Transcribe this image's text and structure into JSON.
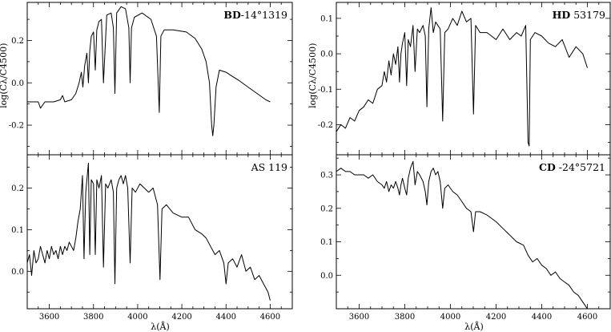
{
  "chart_data": [
    {
      "type": "line",
      "id": "bd",
      "title_bold": "BD",
      "title_rest": "-14°1319",
      "xlim": [
        3500,
        4700
      ],
      "ylim": [
        -0.34,
        0.38
      ],
      "y_ticks": [
        -0.2,
        0.0,
        0.2
      ],
      "y_tick_labels": [
        "-0.2",
        "0.0",
        "0.2"
      ],
      "x_ticks": [
        3600,
        3800,
        4000,
        4200,
        4400,
        4600
      ],
      "x_tick_labels": [
        "3600",
        "3800",
        "4000",
        "4200",
        "4400",
        "4600"
      ],
      "x_minor_ticks": [
        3500,
        3550,
        3600,
        3650,
        3700,
        3750,
        3800,
        3850,
        3900,
        3950,
        4000,
        4050,
        4100,
        4150,
        4200,
        4250,
        4300,
        4350,
        4400,
        4450,
        4500,
        4550,
        4600,
        4650,
        4700
      ],
      "ylabel": "log(Cλ/C4500)",
      "series": [
        {
          "x": [
            3500,
            3530,
            3550,
            3560,
            3580,
            3620,
            3650,
            3660,
            3670,
            3700,
            3720,
            3735,
            3745,
            3752,
            3760,
            3770,
            3777,
            3783,
            3790,
            3800,
            3808,
            3815,
            3825,
            3836,
            3845,
            3860,
            3880,
            3890,
            3897,
            3905,
            3925,
            3945,
            3960,
            3966,
            3972,
            3985,
            4020,
            4060,
            4085,
            4098,
            4105,
            4120,
            4160,
            4220,
            4260,
            4290,
            4310,
            4325,
            4335,
            4340,
            4345,
            4355,
            4370,
            4400,
            4430,
            4460,
            4500,
            4540,
            4580,
            4600
          ],
          "y": [
            -0.09,
            -0.09,
            -0.09,
            -0.12,
            -0.09,
            -0.09,
            -0.08,
            -0.06,
            -0.09,
            -0.08,
            -0.05,
            0.0,
            0.05,
            -0.02,
            0.08,
            0.14,
            0.0,
            0.15,
            0.22,
            0.24,
            0.06,
            0.25,
            0.29,
            0.3,
            0.0,
            0.32,
            0.33,
            0.26,
            -0.05,
            0.33,
            0.36,
            0.35,
            0.26,
            0.0,
            0.26,
            0.31,
            0.33,
            0.3,
            0.22,
            -0.14,
            0.22,
            0.25,
            0.25,
            0.24,
            0.21,
            0.16,
            0.1,
            0.0,
            -0.2,
            -0.25,
            -0.2,
            -0.02,
            0.06,
            0.05,
            0.03,
            0.01,
            -0.02,
            -0.05,
            -0.08,
            -0.09
          ]
        }
      ]
    },
    {
      "type": "line",
      "id": "hd",
      "title_bold": "HD",
      "title_rest": " 53179",
      "xlim": [
        3500,
        4700
      ],
      "ylim": [
        -0.285,
        0.145
      ],
      "y_ticks": [
        -0.2,
        -0.1,
        0.0,
        0.1
      ],
      "y_tick_labels": [
        "-0.2",
        "-0.1",
        "0.0",
        "0.1"
      ],
      "x_ticks": [
        3600,
        3800,
        4000,
        4200,
        4400,
        4600
      ],
      "x_tick_labels": [
        "3600",
        "3800",
        "4000",
        "4200",
        "4400",
        "4600"
      ],
      "x_minor_ticks": [
        3500,
        3550,
        3600,
        3650,
        3700,
        3750,
        3800,
        3850,
        3900,
        3950,
        4000,
        4050,
        4100,
        4150,
        4200,
        4250,
        4300,
        4350,
        4400,
        4450,
        4500,
        4550,
        4600,
        4650,
        4700
      ],
      "ylabel": "log(Cλ/C4500)",
      "series": [
        {
          "x": [
            3500,
            3520,
            3540,
            3560,
            3580,
            3600,
            3620,
            3640,
            3660,
            3680,
            3700,
            3710,
            3720,
            3730,
            3740,
            3750,
            3760,
            3770,
            3777,
            3783,
            3790,
            3800,
            3808,
            3815,
            3825,
            3836,
            3845,
            3855,
            3865,
            3880,
            3890,
            3897,
            3905,
            3915,
            3925,
            3935,
            3945,
            3955,
            3966,
            3975,
            3990,
            4010,
            4030,
            4050,
            4070,
            4090,
            4101,
            4110,
            4130,
            4160,
            4200,
            4230,
            4260,
            4290,
            4310,
            4330,
            4340,
            4345,
            4350,
            4370,
            4400,
            4430,
            4460,
            4490,
            4520,
            4550,
            4580,
            4600
          ],
          "y": [
            -0.22,
            -0.2,
            -0.21,
            -0.18,
            -0.19,
            -0.16,
            -0.15,
            -0.13,
            -0.14,
            -0.1,
            -0.09,
            -0.05,
            -0.08,
            -0.02,
            -0.06,
            0.0,
            -0.03,
            0.02,
            -0.08,
            0.0,
            0.03,
            0.06,
            -0.09,
            0.04,
            0.02,
            0.08,
            -0.05,
            0.07,
            0.06,
            0.08,
            0.05,
            -0.15,
            0.07,
            0.13,
            0.06,
            0.09,
            0.08,
            0.07,
            -0.19,
            0.06,
            0.07,
            0.1,
            0.08,
            0.12,
            0.09,
            0.1,
            -0.17,
            0.08,
            0.06,
            0.06,
            0.04,
            0.07,
            0.04,
            0.06,
            0.05,
            0.08,
            -0.25,
            -0.26,
            0.04,
            0.06,
            0.05,
            0.03,
            0.02,
            0.04,
            -0.01,
            0.02,
            0.0,
            -0.04
          ]
        }
      ]
    },
    {
      "type": "line",
      "id": "as",
      "title_bold": "",
      "title_rest": "AS 119",
      "xlim": [
        3500,
        4700
      ],
      "ylim": [
        -0.09,
        0.28
      ],
      "y_ticks": [
        0.0,
        0.1,
        0.2
      ],
      "y_tick_labels": [
        "0.0",
        "0.1",
        "0.2"
      ],
      "x_ticks": [
        3600,
        3800,
        4000,
        4200,
        4400,
        4600
      ],
      "x_tick_labels": [
        "3600",
        "3800",
        "4000",
        "4200",
        "4400",
        "4600"
      ],
      "x_minor_ticks": [
        3500,
        3550,
        3600,
        3650,
        3700,
        3750,
        3800,
        3850,
        3900,
        3950,
        4000,
        4050,
        4100,
        4150,
        4200,
        4250,
        4300,
        4350,
        4400,
        4450,
        4500,
        4550,
        4600,
        4650,
        4700
      ],
      "series": [
        {
          "x": [
            3500,
            3510,
            3520,
            3530,
            3540,
            3550,
            3560,
            3570,
            3580,
            3590,
            3600,
            3610,
            3620,
            3630,
            3640,
            3650,
            3660,
            3670,
            3680,
            3690,
            3700,
            3710,
            3720,
            3730,
            3740,
            3745,
            3750,
            3757,
            3765,
            3777,
            3783,
            3790,
            3800,
            3808,
            3815,
            3825,
            3836,
            3845,
            3855,
            3865,
            3880,
            3890,
            3897,
            3905,
            3915,
            3925,
            3935,
            3945,
            3955,
            3966,
            3975,
            3990,
            4010,
            4030,
            4050,
            4070,
            4090,
            4101,
            4110,
            4130,
            4160,
            4200,
            4230,
            4260,
            4290,
            4310,
            4330,
            4350,
            4370,
            4390,
            4400,
            4410,
            4430,
            4450,
            4470,
            4490,
            4510,
            4530,
            4550,
            4570,
            4590,
            4600
          ],
          "y": [
            0.02,
            0.04,
            -0.01,
            0.05,
            0.02,
            0.03,
            0.06,
            0.04,
            0.02,
            0.05,
            0.03,
            0.06,
            0.04,
            0.05,
            0.03,
            0.06,
            0.04,
            0.06,
            0.05,
            0.07,
            0.06,
            0.05,
            0.08,
            0.12,
            0.15,
            0.19,
            0.23,
            0.03,
            0.19,
            0.26,
            0.04,
            0.22,
            0.21,
            0.04,
            0.22,
            0.2,
            0.23,
            0.01,
            0.21,
            0.2,
            0.22,
            0.19,
            -0.03,
            0.2,
            0.22,
            0.23,
            0.21,
            0.23,
            0.2,
            0.02,
            0.2,
            0.19,
            0.21,
            0.2,
            0.19,
            0.2,
            0.16,
            -0.02,
            0.15,
            0.16,
            0.14,
            0.13,
            0.13,
            0.1,
            0.09,
            0.08,
            0.06,
            0.04,
            0.05,
            0.02,
            -0.03,
            0.02,
            0.03,
            0.01,
            0.04,
            0.0,
            0.01,
            -0.02,
            -0.01,
            -0.03,
            -0.05,
            -0.07
          ]
        }
      ]
    },
    {
      "type": "line",
      "id": "cd",
      "title_bold": "CD",
      "title_rest": " -24°5721",
      "xlim": [
        3500,
        4700
      ],
      "ylim": [
        -0.1,
        0.36
      ],
      "y_ticks": [
        0.0,
        0.1,
        0.2,
        0.3
      ],
      "y_tick_labels": [
        "0.0",
        "0.1",
        "0.2",
        "0.3"
      ],
      "x_ticks": [
        3600,
        3800,
        4000,
        4200,
        4400,
        4600
      ],
      "x_tick_labels": [
        "3600",
        "3800",
        "4000",
        "4200",
        "4400",
        "4600"
      ],
      "x_minor_ticks": [
        3500,
        3550,
        3600,
        3650,
        3700,
        3750,
        3800,
        3850,
        3900,
        3950,
        4000,
        4050,
        4100,
        4150,
        4200,
        4250,
        4300,
        4350,
        4400,
        4450,
        4500,
        4550,
        4600,
        4650,
        4700
      ],
      "series": [
        {
          "x": [
            3500,
            3520,
            3540,
            3560,
            3580,
            3600,
            3620,
            3640,
            3660,
            3680,
            3700,
            3710,
            3720,
            3730,
            3740,
            3750,
            3760,
            3770,
            3777,
            3783,
            3790,
            3800,
            3808,
            3815,
            3825,
            3836,
            3845,
            3855,
            3865,
            3880,
            3890,
            3897,
            3905,
            3915,
            3925,
            3935,
            3945,
            3955,
            3966,
            3975,
            3990,
            4010,
            4030,
            4050,
            4070,
            4090,
            4101,
            4110,
            4130,
            4160,
            4200,
            4230,
            4260,
            4290,
            4320,
            4340,
            4360,
            4380,
            4400,
            4420,
            4440,
            4460,
            4480,
            4500,
            4520,
            4540,
            4560,
            4580,
            4600
          ],
          "y": [
            0.31,
            0.32,
            0.31,
            0.31,
            0.3,
            0.3,
            0.3,
            0.29,
            0.3,
            0.28,
            0.27,
            0.26,
            0.28,
            0.25,
            0.27,
            0.26,
            0.28,
            0.26,
            0.24,
            0.27,
            0.29,
            0.26,
            0.24,
            0.29,
            0.32,
            0.34,
            0.27,
            0.31,
            0.3,
            0.28,
            0.25,
            0.21,
            0.28,
            0.31,
            0.32,
            0.3,
            0.31,
            0.28,
            0.2,
            0.26,
            0.27,
            0.25,
            0.24,
            0.22,
            0.2,
            0.19,
            0.13,
            0.19,
            0.19,
            0.18,
            0.16,
            0.14,
            0.12,
            0.1,
            0.09,
            0.06,
            0.04,
            0.05,
            0.03,
            0.02,
            0.0,
            0.01,
            -0.01,
            -0.02,
            -0.03,
            -0.05,
            -0.06,
            -0.08,
            -0.1
          ]
        }
      ]
    }
  ],
  "shared_xlabel": "λ(Å)"
}
